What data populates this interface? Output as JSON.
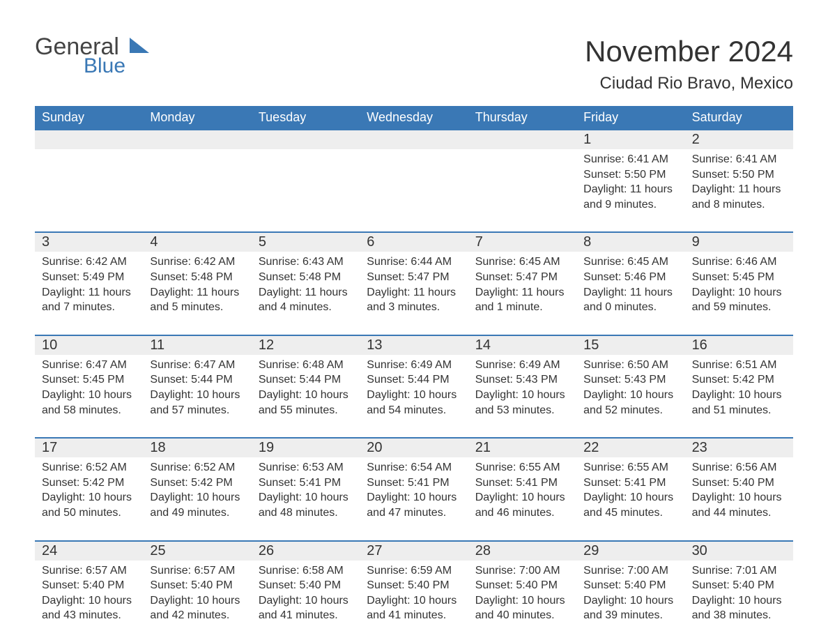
{
  "logo": {
    "general": "General",
    "blue": "Blue"
  },
  "title": "November 2024",
  "location": "Ciudad Rio Bravo, Mexico",
  "colors": {
    "header_bg": "#3a78b5",
    "header_text": "#ffffff",
    "daynum_bg": "#eeeeee",
    "text": "#333333",
    "rule": "#3a78b5",
    "logo_blue": "#3a78b5"
  },
  "dow": [
    "Sunday",
    "Monday",
    "Tuesday",
    "Wednesday",
    "Thursday",
    "Friday",
    "Saturday"
  ],
  "weeks": [
    [
      null,
      null,
      null,
      null,
      null,
      {
        "n": "1",
        "sunrise": "6:41 AM",
        "sunset": "5:50 PM",
        "daylight": "11 hours and 9 minutes."
      },
      {
        "n": "2",
        "sunrise": "6:41 AM",
        "sunset": "5:50 PM",
        "daylight": "11 hours and 8 minutes."
      }
    ],
    [
      {
        "n": "3",
        "sunrise": "6:42 AM",
        "sunset": "5:49 PM",
        "daylight": "11 hours and 7 minutes."
      },
      {
        "n": "4",
        "sunrise": "6:42 AM",
        "sunset": "5:48 PM",
        "daylight": "11 hours and 5 minutes."
      },
      {
        "n": "5",
        "sunrise": "6:43 AM",
        "sunset": "5:48 PM",
        "daylight": "11 hours and 4 minutes."
      },
      {
        "n": "6",
        "sunrise": "6:44 AM",
        "sunset": "5:47 PM",
        "daylight": "11 hours and 3 minutes."
      },
      {
        "n": "7",
        "sunrise": "6:45 AM",
        "sunset": "5:47 PM",
        "daylight": "11 hours and 1 minute."
      },
      {
        "n": "8",
        "sunrise": "6:45 AM",
        "sunset": "5:46 PM",
        "daylight": "11 hours and 0 minutes."
      },
      {
        "n": "9",
        "sunrise": "6:46 AM",
        "sunset": "5:45 PM",
        "daylight": "10 hours and 59 minutes."
      }
    ],
    [
      {
        "n": "10",
        "sunrise": "6:47 AM",
        "sunset": "5:45 PM",
        "daylight": "10 hours and 58 minutes."
      },
      {
        "n": "11",
        "sunrise": "6:47 AM",
        "sunset": "5:44 PM",
        "daylight": "10 hours and 57 minutes."
      },
      {
        "n": "12",
        "sunrise": "6:48 AM",
        "sunset": "5:44 PM",
        "daylight": "10 hours and 55 minutes."
      },
      {
        "n": "13",
        "sunrise": "6:49 AM",
        "sunset": "5:44 PM",
        "daylight": "10 hours and 54 minutes."
      },
      {
        "n": "14",
        "sunrise": "6:49 AM",
        "sunset": "5:43 PM",
        "daylight": "10 hours and 53 minutes."
      },
      {
        "n": "15",
        "sunrise": "6:50 AM",
        "sunset": "5:43 PM",
        "daylight": "10 hours and 52 minutes."
      },
      {
        "n": "16",
        "sunrise": "6:51 AM",
        "sunset": "5:42 PM",
        "daylight": "10 hours and 51 minutes."
      }
    ],
    [
      {
        "n": "17",
        "sunrise": "6:52 AM",
        "sunset": "5:42 PM",
        "daylight": "10 hours and 50 minutes."
      },
      {
        "n": "18",
        "sunrise": "6:52 AM",
        "sunset": "5:42 PM",
        "daylight": "10 hours and 49 minutes."
      },
      {
        "n": "19",
        "sunrise": "6:53 AM",
        "sunset": "5:41 PM",
        "daylight": "10 hours and 48 minutes."
      },
      {
        "n": "20",
        "sunrise": "6:54 AM",
        "sunset": "5:41 PM",
        "daylight": "10 hours and 47 minutes."
      },
      {
        "n": "21",
        "sunrise": "6:55 AM",
        "sunset": "5:41 PM",
        "daylight": "10 hours and 46 minutes."
      },
      {
        "n": "22",
        "sunrise": "6:55 AM",
        "sunset": "5:41 PM",
        "daylight": "10 hours and 45 minutes."
      },
      {
        "n": "23",
        "sunrise": "6:56 AM",
        "sunset": "5:40 PM",
        "daylight": "10 hours and 44 minutes."
      }
    ],
    [
      {
        "n": "24",
        "sunrise": "6:57 AM",
        "sunset": "5:40 PM",
        "daylight": "10 hours and 43 minutes."
      },
      {
        "n": "25",
        "sunrise": "6:57 AM",
        "sunset": "5:40 PM",
        "daylight": "10 hours and 42 minutes."
      },
      {
        "n": "26",
        "sunrise": "6:58 AM",
        "sunset": "5:40 PM",
        "daylight": "10 hours and 41 minutes."
      },
      {
        "n": "27",
        "sunrise": "6:59 AM",
        "sunset": "5:40 PM",
        "daylight": "10 hours and 41 minutes."
      },
      {
        "n": "28",
        "sunrise": "7:00 AM",
        "sunset": "5:40 PM",
        "daylight": "10 hours and 40 minutes."
      },
      {
        "n": "29",
        "sunrise": "7:00 AM",
        "sunset": "5:40 PM",
        "daylight": "10 hours and 39 minutes."
      },
      {
        "n": "30",
        "sunrise": "7:01 AM",
        "sunset": "5:40 PM",
        "daylight": "10 hours and 38 minutes."
      }
    ]
  ],
  "labels": {
    "sunrise": "Sunrise: ",
    "sunset": "Sunset: ",
    "daylight": "Daylight: "
  }
}
